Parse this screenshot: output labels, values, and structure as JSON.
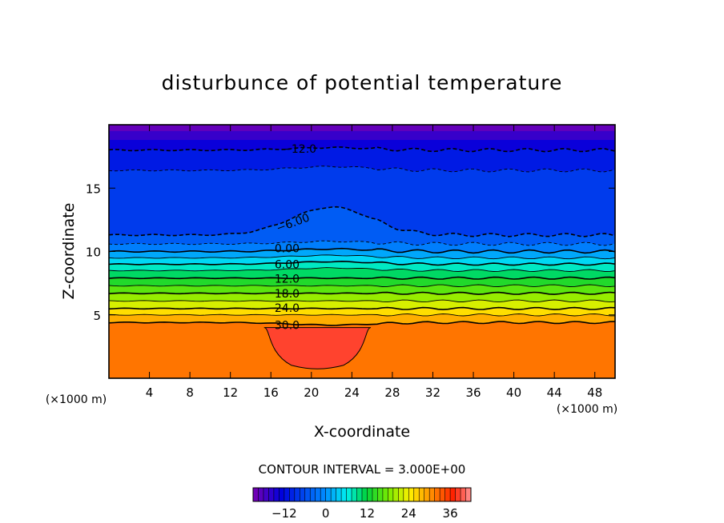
{
  "chart_data": {
    "type": "heatmap",
    "subtype": "filled-contour",
    "title": "disturbunce of potential temperature",
    "xlabel": "X-coordinate",
    "ylabel": "Z-coordinate",
    "x_unit_left": "(×1000 m)",
    "x_unit_right": "(×1000 m)",
    "xlim": [
      0,
      50
    ],
    "ylim": [
      0,
      20
    ],
    "x_ticks": [
      4,
      8,
      12,
      16,
      20,
      24,
      28,
      32,
      36,
      40,
      44,
      48
    ],
    "x_tick_labels": [
      "4",
      "8",
      "12",
      "16",
      "20",
      "24",
      "28",
      "32",
      "36",
      "40",
      "44",
      "48"
    ],
    "y_ticks": [
      5,
      10,
      15
    ],
    "y_tick_labels": [
      "5",
      "10",
      "15"
    ],
    "contour_interval_text": "CONTOUR INTERVAL = 3.000E+00",
    "contour_interval": 3.0,
    "color_range": [
      -21,
      42
    ],
    "colorbar_ticks": [
      -12,
      0,
      12,
      24,
      36
    ],
    "colorbar_tick_labels": [
      "−12",
      "0",
      "12",
      "24",
      "36"
    ],
    "contour_lines": [
      {
        "level": -12,
        "z_km": 18.0,
        "z_bump_km": 18.2,
        "dashed": true,
        "bold": true
      },
      {
        "level": -9,
        "z_km": 16.4,
        "z_bump_km": 16.7,
        "dashed": true,
        "bold": false
      },
      {
        "level": -6,
        "z_km": 11.3,
        "z_bump_km": 13.5,
        "dashed": true,
        "bold": true
      },
      {
        "level": -3,
        "z_km": 10.6,
        "z_bump_km": 10.8,
        "dashed": true,
        "bold": false
      },
      {
        "level": 0,
        "z_km": 10.0,
        "z_bump_km": 10.2,
        "dashed": false,
        "bold": true
      },
      {
        "level": 3,
        "z_km": 9.5,
        "z_bump_km": 9.7,
        "dashed": false,
        "bold": false
      },
      {
        "level": 6,
        "z_km": 9.0,
        "z_bump_km": 9.2,
        "dashed": false,
        "bold": true
      },
      {
        "level": 9,
        "z_km": 8.5,
        "z_bump_km": 8.7,
        "dashed": false,
        "bold": false
      },
      {
        "level": 12,
        "z_km": 7.9,
        "z_bump_km": 7.9,
        "dashed": false,
        "bold": true
      },
      {
        "level": 15,
        "z_km": 7.3,
        "z_bump_km": 7.3,
        "dashed": false,
        "bold": false
      },
      {
        "level": 18,
        "z_km": 6.7,
        "z_bump_km": 6.7,
        "dashed": false,
        "bold": true
      },
      {
        "level": 21,
        "z_km": 6.1,
        "z_bump_km": 6.1,
        "dashed": false,
        "bold": false
      },
      {
        "level": 24,
        "z_km": 5.5,
        "z_bump_km": 5.5,
        "dashed": false,
        "bold": true
      },
      {
        "level": 27,
        "z_km": 5.0,
        "z_bump_km": 5.0,
        "dashed": false,
        "bold": false
      },
      {
        "level": 30,
        "z_km": 4.4,
        "z_bump_km": 4.2,
        "dashed": false,
        "bold": true
      }
    ],
    "contour_labels": [
      {
        "text": "−12.0",
        "x_km": 18.8,
        "z_km": 18.1
      },
      {
        "text": "−6.00",
        "x_km": 18.3,
        "z_km": 12.3
      },
      {
        "text": "0.00",
        "x_km": 17.6,
        "z_km": 10.25
      },
      {
        "text": "6.00",
        "x_km": 17.6,
        "z_km": 9.0
      },
      {
        "text": "12.0",
        "x_km": 17.6,
        "z_km": 7.85
      },
      {
        "text": "18.0",
        "x_km": 17.6,
        "z_km": 6.7
      },
      {
        "text": "24.0",
        "x_km": 17.6,
        "z_km": 5.55
      },
      {
        "text": "30.0",
        "x_km": 17.6,
        "z_km": 4.2
      }
    ],
    "warm_pool": {
      "x_range_km": [
        15.8,
        25.4
      ],
      "z_top_km": 4.0,
      "z_bottom_km": 0.9
    }
  }
}
